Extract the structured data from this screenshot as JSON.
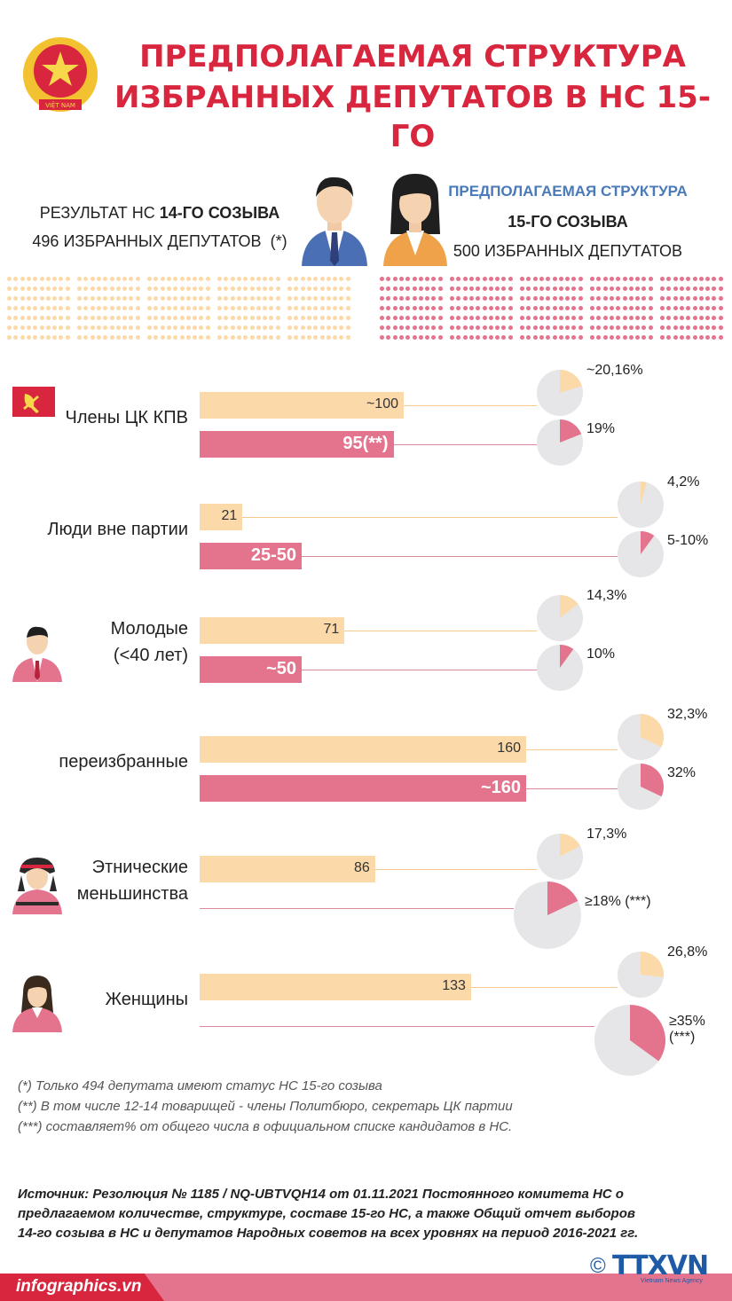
{
  "header": {
    "title_line1": "ПРЕДПОЛАГАЕМАЯ СТРУКТУРА",
    "title_line2": "ИЗБРАННЫХ ДЕПУТАТОВ В НС 15-ГО",
    "emblem_text": "VIỆT NAM",
    "left_line1_prefix": "РЕЗУЛЬТАТ НС ",
    "left_line1_bold": "14-ГО СОЗЫВА",
    "left_line2": "496 ИЗБРАННЫХ ДЕПУТАТОВ",
    "left_line2_mark": "(*)",
    "right_line1": "ПРЕДПОЛАГАЕМАЯ СТРУКТУРА",
    "right_line2": "15-ГО СОЗЫВА",
    "right_line3": "500 ИЗБРАННЫХ ДЕПУТАТОВ"
  },
  "colors": {
    "title": "#d7263d",
    "old": "#fbd9a8",
    "new": "#e4748d",
    "pie_bg": "#e6e6e8",
    "right_heading": "#4a7ab8"
  },
  "chart_data": {
    "type": "bar",
    "categories": [
      {
        "label": "Члены  ЦК КПВ",
        "icon": "party-flag-icon"
      },
      {
        "label": "Люди вне партии",
        "icon": ""
      },
      {
        "label": "Молодые\n(<40 лет)",
        "icon": "young-man-icon"
      },
      {
        "label": "переизбранные",
        "icon": ""
      },
      {
        "label": "Этнические\nменьшинства",
        "icon": "ethnic-woman-icon"
      },
      {
        "label": "Женщины",
        "icon": "woman-icon"
      }
    ],
    "series": [
      {
        "values": [
          100,
          21,
          71,
          160,
          86,
          133
        ],
        "value_labels": [
          "~100",
          "21",
          "71",
          "160",
          "86",
          "133"
        ],
        "percents": [
          20.16,
          4.2,
          14.3,
          32.3,
          17.3,
          26.8
        ],
        "percent_labels": [
          "~20,16%",
          "4,2%",
          "14,3%",
          "32,3%",
          "17,3%",
          "26,8%"
        ]
      },
      {
        "values": [
          95,
          50,
          50,
          160,
          null,
          null
        ],
        "value_labels": [
          "95(**)",
          "25-50",
          "~50",
          "~160",
          "",
          ""
        ],
        "percents": [
          19,
          10,
          10,
          32,
          18,
          35
        ],
        "percent_labels": [
          "19%",
          "5-10%",
          "10%",
          "32%",
          "≥18% (***)",
          "≥35%\n(***)"
        ]
      }
    ]
  },
  "notes": [
    "(*) Только 494 депутата имеют статус НС 15-го созыва",
    "(**) В том числе 12-14 товарищей - члены Политбюро, секретарь ЦК партии",
    "(***) составляет% от общего числа в официальном списке кандидатов в НС."
  ],
  "source_lines": [
    "Источник: Резолюция № 1185 / NQ-UBTVQH14 от 01.11.2021 Постоянного комитета НС о",
    "предлагаемом количестве, структуре, составе 15-го НС, а также Общий отчет выборов",
    "14-го созыва в НС и депутатов Народных советов на всех уровнях на период 2016-2021 гг."
  ],
  "footer": {
    "site": "infographics.vn",
    "copyright": "©",
    "agency": "TTXVN",
    "agency_sub": "Vietnam News Agency"
  }
}
